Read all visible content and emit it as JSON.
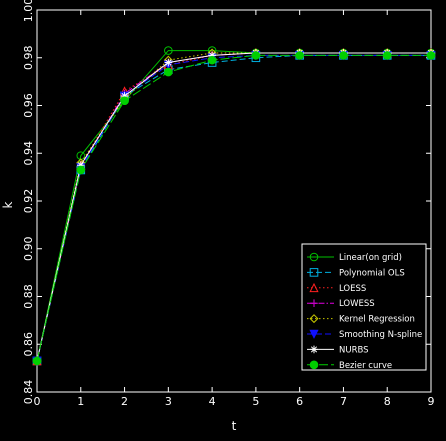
{
  "chart_data": {
    "type": "line",
    "xlabel": "t",
    "ylabel": "k",
    "xlim": [
      0,
      9
    ],
    "ylim": [
      0.84,
      1.0
    ],
    "xticks": [
      "0",
      "1",
      "2",
      "3",
      "4",
      "5",
      "6",
      "7",
      "8",
      "9"
    ],
    "yticks": [
      "0.84",
      "0.86",
      "0.88",
      "0.90",
      "0.92",
      "0.94",
      "0.96",
      "0.98",
      "1.00"
    ],
    "x": [
      0,
      1,
      2,
      3,
      4,
      5,
      6,
      7,
      8,
      9
    ],
    "grid": false,
    "legend_position": "bottom-right",
    "series": [
      {
        "name": "Linear(on grid)",
        "color": "#00c000",
        "marker": "circle",
        "dash": "solid",
        "values": [
          0.853,
          0.939,
          0.962,
          0.983,
          0.983,
          0.982,
          0.982,
          0.982,
          0.982,
          0.982
        ]
      },
      {
        "name": "Polynomial OLS",
        "color": "#00b0e0",
        "marker": "square",
        "dash": "dash",
        "values": [
          0.853,
          0.933,
          0.964,
          0.975,
          0.978,
          0.98,
          0.981,
          0.981,
          0.981,
          0.981
        ]
      },
      {
        "name": "LOESS",
        "color": "#ff2020",
        "marker": "triangle",
        "dash": "dot",
        "values": [
          0.853,
          0.935,
          0.966,
          0.977,
          0.981,
          0.982,
          0.982,
          0.982,
          0.982,
          0.982
        ]
      },
      {
        "name": "LOWESS",
        "color": "#e000e0",
        "marker": "plus",
        "dash": "dashdot",
        "values": [
          0.853,
          0.934,
          0.965,
          0.978,
          0.981,
          0.982,
          0.982,
          0.982,
          0.982,
          0.982
        ]
      },
      {
        "name": "Kernel Regression",
        "color": "#c8c800",
        "marker": "diamond",
        "dash": "dot",
        "values": [
          0.853,
          0.936,
          0.963,
          0.979,
          0.982,
          0.982,
          0.982,
          0.982,
          0.982,
          0.982
        ]
      },
      {
        "name": "Smoothing N-spline",
        "color": "#1010ff",
        "marker": "triangle-down",
        "dash": "dash",
        "values": [
          0.853,
          0.934,
          0.964,
          0.977,
          0.98,
          0.981,
          0.981,
          0.981,
          0.981,
          0.981
        ]
      },
      {
        "name": "NURBS",
        "color": "#ffffff",
        "marker": "star",
        "dash": "solid",
        "values": [
          0.853,
          0.935,
          0.964,
          0.978,
          0.981,
          0.982,
          0.982,
          0.982,
          0.982,
          0.982
        ]
      },
      {
        "name": "Bezier curve",
        "color": "#00d000",
        "marker": "filled-circle",
        "dash": "longdash",
        "values": [
          0.853,
          0.933,
          0.962,
          0.974,
          0.979,
          0.981,
          0.981,
          0.981,
          0.981,
          0.981
        ]
      }
    ]
  }
}
